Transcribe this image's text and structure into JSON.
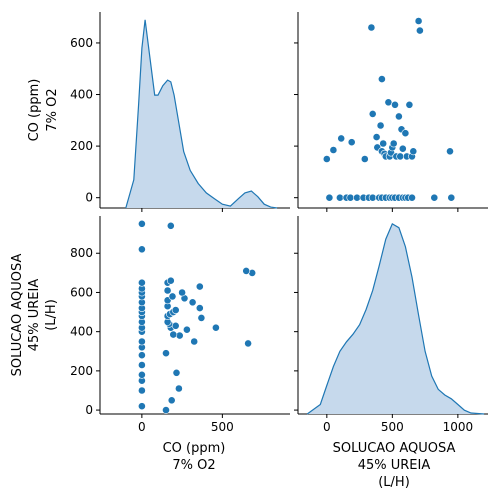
{
  "chart_data": {
    "type": "pairplot",
    "variables": [
      "CO (ppm)\n7% O2",
      "SOLUCAO AQUOSA\n45% UREIA\n(L/H)"
    ],
    "axis_label_lines": {
      "co": [
        "CO (ppm)",
        "7% O2"
      ],
      "urea": [
        "SOLUCAO AQUOSA",
        "45% UREIA",
        "(L/H)"
      ]
    },
    "colors": {
      "marker": "#1f77b4",
      "kde_fill": "#c6d9ec",
      "kde_line": "#1f77b4"
    },
    "co_axis": {
      "ticks": [
        0,
        200,
        400,
        600
      ],
      "tick_labels": [
        "0",
        "200",
        "400",
        "600"
      ],
      "range": [
        -40,
        720
      ]
    },
    "co_axis_bottom": {
      "ticks": [
        0,
        500
      ],
      "tick_labels": [
        "0",
        "500"
      ],
      "range": [
        -260,
        920
      ]
    },
    "urea_axis_left": {
      "ticks": [
        0,
        200,
        400,
        600,
        800
      ],
      "tick_labels": [
        "0",
        "200",
        "400",
        "600",
        "800"
      ],
      "range": [
        -20,
        990
      ]
    },
    "urea_axis_bottom": {
      "ticks": [
        0,
        500,
        1000
      ],
      "tick_labels": [
        "0",
        "500",
        "1000"
      ],
      "range": [
        -220,
        1230
      ]
    },
    "co_kde": {
      "x": [
        -100,
        -50,
        -20,
        0,
        20,
        50,
        80,
        100,
        130,
        160,
        180,
        200,
        230,
        260,
        300,
        350,
        400,
        450,
        500,
        550,
        600,
        640,
        680,
        720,
        760,
        800,
        840
      ],
      "density_relative": [
        0.0,
        0.15,
        0.55,
        0.85,
        1.0,
        0.8,
        0.6,
        0.6,
        0.65,
        0.68,
        0.67,
        0.6,
        0.45,
        0.3,
        0.2,
        0.13,
        0.08,
        0.05,
        0.02,
        0.01,
        0.05,
        0.08,
        0.09,
        0.06,
        0.02,
        0.005,
        0.0
      ]
    },
    "urea_kde": {
      "x": [
        -150,
        -50,
        0,
        50,
        100,
        150,
        200,
        250,
        300,
        350,
        400,
        450,
        500,
        550,
        600,
        650,
        700,
        750,
        800,
        850,
        900,
        950,
        1000,
        1050,
        1100,
        1200
      ],
      "density_relative": [
        0.0,
        0.05,
        0.15,
        0.25,
        0.33,
        0.38,
        0.42,
        0.47,
        0.55,
        0.65,
        0.78,
        0.92,
        1.0,
        0.98,
        0.88,
        0.72,
        0.52,
        0.33,
        0.2,
        0.13,
        0.1,
        0.08,
        0.05,
        0.02,
        0.005,
        0.0
      ]
    },
    "points": [
      {
        "urea": 0,
        "co": 150
      },
      {
        "urea": 50,
        "co": 185
      },
      {
        "urea": 110,
        "co": 230
      },
      {
        "urea": 190,
        "co": 215
      },
      {
        "urea": 290,
        "co": 150
      },
      {
        "urea": 340,
        "co": 660
      },
      {
        "urea": 350,
        "co": 325
      },
      {
        "urea": 380,
        "co": 235
      },
      {
        "urea": 385,
        "co": 195
      },
      {
        "urea": 410,
        "co": 280
      },
      {
        "urea": 420,
        "co": 460
      },
      {
        "urea": 420,
        "co": 180
      },
      {
        "urea": 430,
        "co": 210
      },
      {
        "urea": 440,
        "co": 170
      },
      {
        "urea": 450,
        "co": 160
      },
      {
        "urea": 470,
        "co": 370
      },
      {
        "urea": 480,
        "co": 160
      },
      {
        "urea": 490,
        "co": 175
      },
      {
        "urea": 500,
        "co": 195
      },
      {
        "urea": 510,
        "co": 210
      },
      {
        "urea": 520,
        "co": 360
      },
      {
        "urea": 530,
        "co": 160
      },
      {
        "urea": 550,
        "co": 315
      },
      {
        "urea": 560,
        "co": 160
      },
      {
        "urea": 570,
        "co": 265
      },
      {
        "urea": 580,
        "co": 190
      },
      {
        "urea": 600,
        "co": 250
      },
      {
        "urea": 610,
        "co": 160
      },
      {
        "urea": 630,
        "co": 360
      },
      {
        "urea": 650,
        "co": 160
      },
      {
        "urea": 660,
        "co": 180
      },
      {
        "urea": 700,
        "co": 685
      },
      {
        "urea": 710,
        "co": 648
      },
      {
        "urea": 940,
        "co": 180
      },
      {
        "urea": 20,
        "co": 0
      },
      {
        "urea": 100,
        "co": 0
      },
      {
        "urea": 150,
        "co": 0
      },
      {
        "urea": 180,
        "co": 0
      },
      {
        "urea": 230,
        "co": 0
      },
      {
        "urea": 280,
        "co": 0
      },
      {
        "urea": 320,
        "co": 0
      },
      {
        "urea": 350,
        "co": 0
      },
      {
        "urea": 400,
        "co": 0
      },
      {
        "urea": 420,
        "co": 0
      },
      {
        "urea": 450,
        "co": 0
      },
      {
        "urea": 480,
        "co": 0
      },
      {
        "urea": 500,
        "co": 0
      },
      {
        "urea": 520,
        "co": 0
      },
      {
        "urea": 550,
        "co": 0
      },
      {
        "urea": 580,
        "co": 0
      },
      {
        "urea": 600,
        "co": 0
      },
      {
        "urea": 620,
        "co": 0
      },
      {
        "urea": 650,
        "co": 0
      },
      {
        "urea": 820,
        "co": 0
      },
      {
        "urea": 950,
        "co": 0
      }
    ],
    "xlabels": [
      "CO (ppm)\n7% O2",
      "SOLUCAO AQUOSA\n45% UREIA\n(L/H)"
    ],
    "ylabels": [
      "CO (ppm)\n7% O2",
      "SOLUCAO AQUOSA\n45% UREIA\n(L/H)"
    ],
    "grid": false,
    "legend": "none"
  }
}
